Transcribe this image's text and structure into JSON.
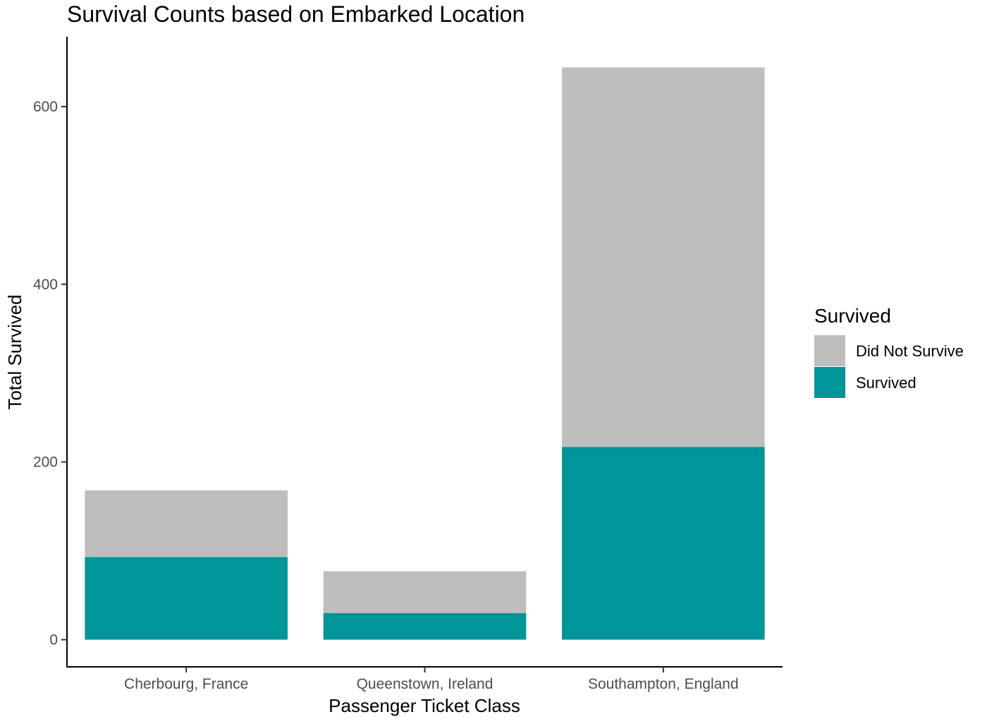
{
  "chart_data": {
    "type": "bar",
    "stacked": true,
    "title": "Survival Counts based on Embarked Location",
    "xlabel": "Passenger Ticket Class",
    "ylabel": "Total Survived",
    "categories": [
      "Cherbourg, France",
      "Queenstown, Ireland",
      "Southampton, England"
    ],
    "series": [
      {
        "name": "Survived",
        "values": [
          93,
          30,
          217
        ],
        "color": "#009599"
      },
      {
        "name": "Did Not Survive",
        "values": [
          75,
          47,
          427
        ],
        "color": "#bebebe"
      }
    ],
    "ylim": [
      -30,
      680
    ],
    "yticks": [
      0,
      200,
      400,
      600
    ],
    "grid": false,
    "legend": {
      "title": "Survived",
      "position": "right",
      "entries": [
        {
          "label": "Did Not Survive",
          "color": "#bebebe"
        },
        {
          "label": "Survived",
          "color": "#009599"
        }
      ]
    }
  }
}
